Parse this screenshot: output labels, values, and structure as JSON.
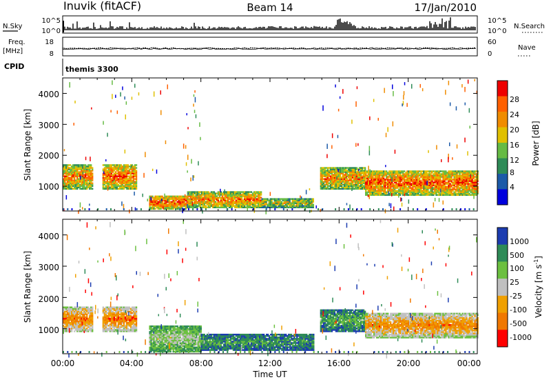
{
  "header": {
    "station": "Inuvik (fitACF)",
    "beam": "Beam 14",
    "date": "17/Jan/2010"
  },
  "strips": {
    "nsky_label": "N.Sky",
    "nsearch_label": "N.Search",
    "nsky_ticks": [
      "10^5",
      "10^0"
    ],
    "nsearch_ticks": [
      "10^5",
      "10^0"
    ],
    "freq_label": "Freq.",
    "freq_unit": "[MHz]",
    "freq_ticks": [
      "18",
      "8"
    ],
    "nave_label": "Nave",
    "nave_ticks": [
      "60",
      "0"
    ],
    "cpid_label": "CPID",
    "cpid_value": "themis 3300"
  },
  "colors": {
    "power": [
      "#0000dd",
      "#1c5aa8",
      "#2e8b57",
      "#66bb44",
      "#e0c000",
      "#f08c00",
      "#ff6000",
      "#ee0000"
    ],
    "velocity": [
      "#1c3cb0",
      "#2e8b57",
      "#6cc040",
      "#c0c0c0",
      "#f0a000",
      "#f07800",
      "#ff0000"
    ]
  },
  "chart_data": [
    {
      "type": "heatmap",
      "name": "power",
      "ylabel": "Slant Range [km]",
      "xlabel": "",
      "yticks": [
        "1000",
        "2000",
        "3000",
        "4000"
      ],
      "ylim": [
        200,
        4500
      ],
      "xlim_hours": [
        0,
        24
      ],
      "colorbar_label": "Power [dB]",
      "colorbar_ticks": [
        "4",
        "8",
        "12",
        "16",
        "20",
        "24",
        "28"
      ],
      "regions": [
        {
          "t": [
            0.0,
            1.7
          ],
          "r": [
            900,
            1700
          ],
          "level": 0.72
        },
        {
          "t": [
            2.3,
            4.3
          ],
          "r": [
            900,
            1700
          ],
          "level": 0.8
        },
        {
          "t": [
            5.0,
            7.2
          ],
          "r": [
            250,
            700
          ],
          "level": 0.85
        },
        {
          "t": [
            7.2,
            11.5
          ],
          "r": [
            300,
            800
          ],
          "level": 0.75
        },
        {
          "t": [
            11.5,
            14.5
          ],
          "r": [
            300,
            600
          ],
          "level": 0.55
        },
        {
          "t": [
            14.9,
            17.5
          ],
          "r": [
            900,
            1600
          ],
          "level": 0.7
        },
        {
          "t": [
            17.5,
            24.0
          ],
          "r": [
            700,
            1500
          ],
          "level": 0.82
        }
      ]
    },
    {
      "type": "heatmap",
      "name": "velocity",
      "ylabel": "Slant Range [km]",
      "xlabel": "Time UT",
      "xticks": [
        "00:00",
        "04:00",
        "08:00",
        "12:00",
        "16:00",
        "20:00",
        "00:00"
      ],
      "yticks": [
        "1000",
        "2000",
        "3000",
        "4000"
      ],
      "ylim": [
        200,
        4500
      ],
      "xlim_hours": [
        0,
        24
      ],
      "colorbar_label": "Velocity [m s",
      "colorbar_label_sup": "-1",
      "colorbar_label_end": "]",
      "colorbar_ticks": [
        "1000",
        "500",
        "100",
        "25",
        "-25",
        "-100",
        "-500",
        "-1000"
      ],
      "regions": [
        {
          "t": [
            0.0,
            1.7
          ],
          "r": [
            900,
            1700
          ],
          "level": 0.78
        },
        {
          "t": [
            2.3,
            4.3
          ],
          "r": [
            900,
            1700
          ],
          "level": 0.8
        },
        {
          "t": [
            5.0,
            8.0
          ],
          "r": [
            250,
            1100
          ],
          "level": 0.45
        },
        {
          "t": [
            8.0,
            14.5
          ],
          "r": [
            300,
            800
          ],
          "level": 0.25
        },
        {
          "t": [
            14.9,
            17.5
          ],
          "r": [
            900,
            1600
          ],
          "level": 0.3
        },
        {
          "t": [
            17.5,
            24.0
          ],
          "r": [
            700,
            1500
          ],
          "level": 0.75
        }
      ]
    }
  ]
}
